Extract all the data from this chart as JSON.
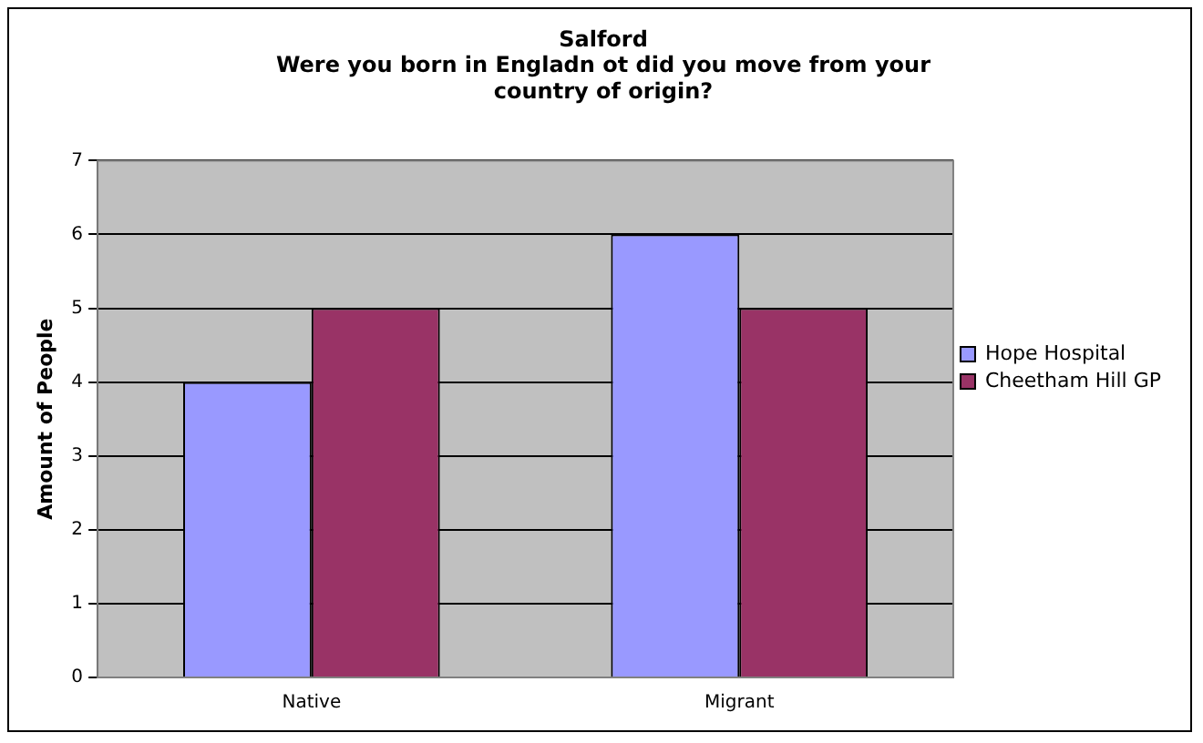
{
  "chart_data": {
    "type": "bar",
    "title": "Salford",
    "subtitle": "Were you born in Engladn ot did you move from your country of origin?",
    "ylabel": "Amount of People",
    "categories": [
      "Native",
      "Migrant"
    ],
    "series": [
      {
        "name": "Hope Hospital",
        "color": "#9999ff",
        "values": [
          4,
          6
        ]
      },
      {
        "name": "Cheetham Hill GP",
        "color": "#993366",
        "values": [
          5,
          5
        ]
      }
    ],
    "ylim": [
      0,
      7
    ],
    "yticks": [
      0,
      1,
      2,
      3,
      4,
      5,
      6,
      7
    ],
    "grid": "y",
    "legend": "right"
  }
}
